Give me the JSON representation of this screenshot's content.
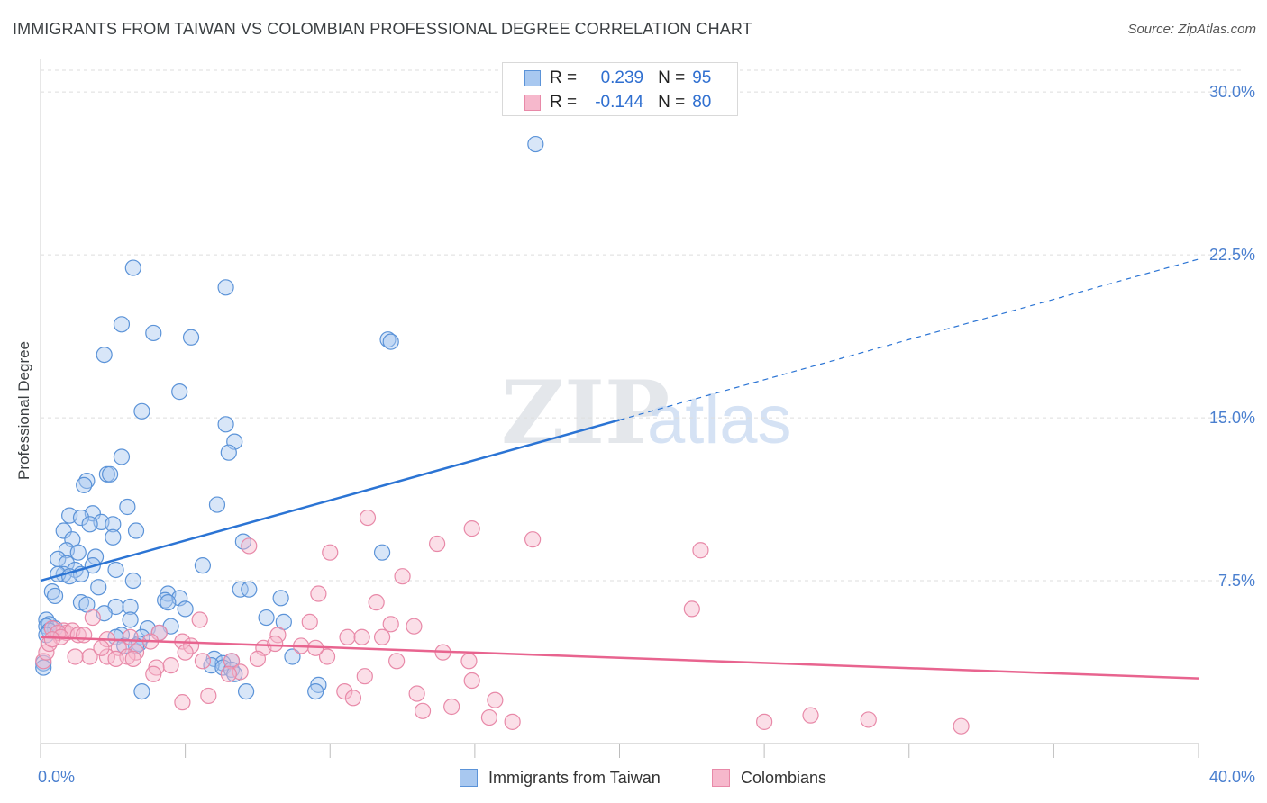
{
  "header": {
    "title": "IMMIGRANTS FROM TAIWAN VS COLOMBIAN PROFESSIONAL DEGREE CORRELATION CHART",
    "source": "Source: ZipAtlas.com"
  },
  "legend_top": {
    "rows": [
      {
        "r_label": "R =",
        "r_value": "0.239",
        "n_label": "N =",
        "n_value": "95"
      },
      {
        "r_label": "R =",
        "r_value": "-0.144",
        "n_label": "N =",
        "n_value": "80"
      }
    ]
  },
  "colors": {
    "taiwan_fill": "#a8c8f0",
    "taiwan_stroke": "#5b93d8",
    "taiwan_line": "#2b74d4",
    "colombian_fill": "#f6b8cc",
    "colombian_stroke": "#e889a8",
    "colombian_line": "#e8648f",
    "axis_text": "#4a7fcf",
    "grid": "#dedede"
  },
  "chart_data": {
    "type": "scatter",
    "title": "IMMIGRANTS FROM TAIWAN VS COLOMBIAN PROFESSIONAL DEGREE CORRELATION CHART",
    "ylabel": "Professional Degree",
    "xlabel": "",
    "xlim": [
      0,
      40
    ],
    "ylim": [
      0,
      31
    ],
    "x_ticks": [
      "0.0%",
      "40.0%"
    ],
    "y_ticks": [
      {
        "value": 7.5,
        "label": "7.5%"
      },
      {
        "value": 15.0,
        "label": "15.0%"
      },
      {
        "value": 22.5,
        "label": "22.5%"
      },
      {
        "value": 30.0,
        "label": "30.0%"
      }
    ],
    "grid": true,
    "legend_position": "bottom",
    "series": [
      {
        "name": "Immigrants from Taiwan",
        "r": 0.239,
        "n": 95,
        "trend": {
          "x0": 0,
          "y0": 7.5,
          "x1": 40,
          "y1": 22.3,
          "solid_until_x": 20
        },
        "points": [
          [
            17.1,
            27.6
          ],
          [
            3.2,
            21.9
          ],
          [
            6.4,
            21.0
          ],
          [
            2.8,
            19.3
          ],
          [
            3.9,
            18.9
          ],
          [
            5.2,
            18.7
          ],
          [
            12.0,
            18.6
          ],
          [
            12.1,
            18.5
          ],
          [
            2.2,
            17.9
          ],
          [
            4.8,
            16.2
          ],
          [
            3.5,
            15.3
          ],
          [
            6.4,
            14.7
          ],
          [
            6.7,
            13.9
          ],
          [
            6.5,
            13.4
          ],
          [
            2.8,
            13.2
          ],
          [
            2.3,
            12.4
          ],
          [
            2.4,
            12.4
          ],
          [
            1.6,
            12.1
          ],
          [
            1.5,
            11.9
          ],
          [
            6.1,
            11.0
          ],
          [
            3.0,
            10.9
          ],
          [
            1.8,
            10.6
          ],
          [
            1.0,
            10.5
          ],
          [
            1.4,
            10.4
          ],
          [
            2.1,
            10.2
          ],
          [
            2.5,
            10.1
          ],
          [
            1.7,
            10.1
          ],
          [
            3.3,
            9.8
          ],
          [
            0.8,
            9.8
          ],
          [
            2.5,
            9.5
          ],
          [
            1.1,
            9.4
          ],
          [
            7.0,
            9.3
          ],
          [
            0.9,
            8.9
          ],
          [
            11.8,
            8.8
          ],
          [
            1.3,
            8.8
          ],
          [
            1.9,
            8.6
          ],
          [
            0.6,
            8.5
          ],
          [
            0.9,
            8.3
          ],
          [
            1.8,
            8.2
          ],
          [
            5.6,
            8.2
          ],
          [
            2.6,
            8.0
          ],
          [
            1.2,
            8.0
          ],
          [
            0.8,
            7.8
          ],
          [
            1.4,
            7.8
          ],
          [
            0.6,
            7.8
          ],
          [
            1.0,
            7.7
          ],
          [
            3.2,
            7.5
          ],
          [
            2.0,
            7.2
          ],
          [
            6.9,
            7.1
          ],
          [
            7.2,
            7.1
          ],
          [
            0.4,
            7.0
          ],
          [
            4.4,
            6.9
          ],
          [
            0.5,
            6.8
          ],
          [
            4.8,
            6.7
          ],
          [
            8.3,
            6.7
          ],
          [
            4.3,
            6.6
          ],
          [
            4.4,
            6.5
          ],
          [
            1.4,
            6.5
          ],
          [
            1.6,
            6.4
          ],
          [
            2.6,
            6.3
          ],
          [
            3.1,
            6.3
          ],
          [
            5.0,
            6.2
          ],
          [
            2.2,
            6.0
          ],
          [
            7.8,
            5.8
          ],
          [
            0.2,
            5.7
          ],
          [
            3.1,
            5.7
          ],
          [
            8.4,
            5.6
          ],
          [
            0.3,
            5.5
          ],
          [
            0.2,
            5.4
          ],
          [
            4.5,
            5.4
          ],
          [
            3.7,
            5.3
          ],
          [
            0.5,
            5.3
          ],
          [
            0.3,
            5.2
          ],
          [
            4.1,
            5.1
          ],
          [
            2.8,
            5.0
          ],
          [
            2.6,
            4.9
          ],
          [
            3.5,
            4.9
          ],
          [
            3.4,
            4.6
          ],
          [
            3.3,
            4.5
          ],
          [
            2.9,
            4.5
          ],
          [
            8.7,
            4.0
          ],
          [
            6.0,
            3.9
          ],
          [
            6.6,
            3.8
          ],
          [
            6.3,
            3.7
          ],
          [
            5.9,
            3.6
          ],
          [
            6.3,
            3.5
          ],
          [
            6.6,
            3.4
          ],
          [
            6.7,
            3.2
          ],
          [
            9.6,
            2.7
          ],
          [
            9.5,
            2.4
          ],
          [
            3.5,
            2.4
          ],
          [
            7.1,
            2.4
          ],
          [
            0.1,
            3.7
          ],
          [
            0.1,
            3.5
          ],
          [
            0.2,
            5.0
          ]
        ]
      },
      {
        "name": "Colombians",
        "r": -0.144,
        "n": 80,
        "trend": {
          "x0": 0,
          "y0": 4.9,
          "x1": 40,
          "y1": 3.0
        },
        "points": [
          [
            11.3,
            10.4
          ],
          [
            14.9,
            9.9
          ],
          [
            17.0,
            9.4
          ],
          [
            13.7,
            9.2
          ],
          [
            7.2,
            9.1
          ],
          [
            22.8,
            8.9
          ],
          [
            10.0,
            8.8
          ],
          [
            12.5,
            7.7
          ],
          [
            9.6,
            6.9
          ],
          [
            11.6,
            6.5
          ],
          [
            22.5,
            6.2
          ],
          [
            1.8,
            5.8
          ],
          [
            5.5,
            5.7
          ],
          [
            9.3,
            5.6
          ],
          [
            12.1,
            5.5
          ],
          [
            12.9,
            5.4
          ],
          [
            0.4,
            5.3
          ],
          [
            0.8,
            5.2
          ],
          [
            0.9,
            5.1
          ],
          [
            1.1,
            5.2
          ],
          [
            0.6,
            5.1
          ],
          [
            1.3,
            5.0
          ],
          [
            1.5,
            5.0
          ],
          [
            0.7,
            4.9
          ],
          [
            4.1,
            5.1
          ],
          [
            8.2,
            5.0
          ],
          [
            10.6,
            4.9
          ],
          [
            11.1,
            4.9
          ],
          [
            11.8,
            4.9
          ],
          [
            2.3,
            4.8
          ],
          [
            3.1,
            4.9
          ],
          [
            3.8,
            4.7
          ],
          [
            4.9,
            4.7
          ],
          [
            9.0,
            4.5
          ],
          [
            7.7,
            4.4
          ],
          [
            5.2,
            4.5
          ],
          [
            2.7,
            4.4
          ],
          [
            3.3,
            4.2
          ],
          [
            3.0,
            4.0
          ],
          [
            1.7,
            4.0
          ],
          [
            2.3,
            4.0
          ],
          [
            2.6,
            3.9
          ],
          [
            3.2,
            3.9
          ],
          [
            5.6,
            3.8
          ],
          [
            6.6,
            3.8
          ],
          [
            7.5,
            3.9
          ],
          [
            9.9,
            4.0
          ],
          [
            12.3,
            3.8
          ],
          [
            14.8,
            3.8
          ],
          [
            4.5,
            3.6
          ],
          [
            4.0,
            3.5
          ],
          [
            6.9,
            3.3
          ],
          [
            3.9,
            3.2
          ],
          [
            6.5,
            3.2
          ],
          [
            11.2,
            3.1
          ],
          [
            14.9,
            2.9
          ],
          [
            10.5,
            2.4
          ],
          [
            13.0,
            2.3
          ],
          [
            5.8,
            2.2
          ],
          [
            10.8,
            2.1
          ],
          [
            15.7,
            2.0
          ],
          [
            4.9,
            1.9
          ],
          [
            14.2,
            1.7
          ],
          [
            13.2,
            1.5
          ],
          [
            15.5,
            1.2
          ],
          [
            16.3,
            1.0
          ],
          [
            25.0,
            1.0
          ],
          [
            26.6,
            1.3
          ],
          [
            28.6,
            1.1
          ],
          [
            31.8,
            0.8
          ],
          [
            0.1,
            3.8
          ],
          [
            0.2,
            4.2
          ],
          [
            0.3,
            4.6
          ],
          [
            0.4,
            4.8
          ],
          [
            1.2,
            4.0
          ],
          [
            2.1,
            4.4
          ],
          [
            5.0,
            4.2
          ],
          [
            8.1,
            4.6
          ],
          [
            9.5,
            4.4
          ],
          [
            13.9,
            4.2
          ]
        ]
      }
    ]
  },
  "legend_bottom": {
    "items": [
      {
        "label": "Immigrants from Taiwan"
      },
      {
        "label": "Colombians"
      }
    ]
  }
}
